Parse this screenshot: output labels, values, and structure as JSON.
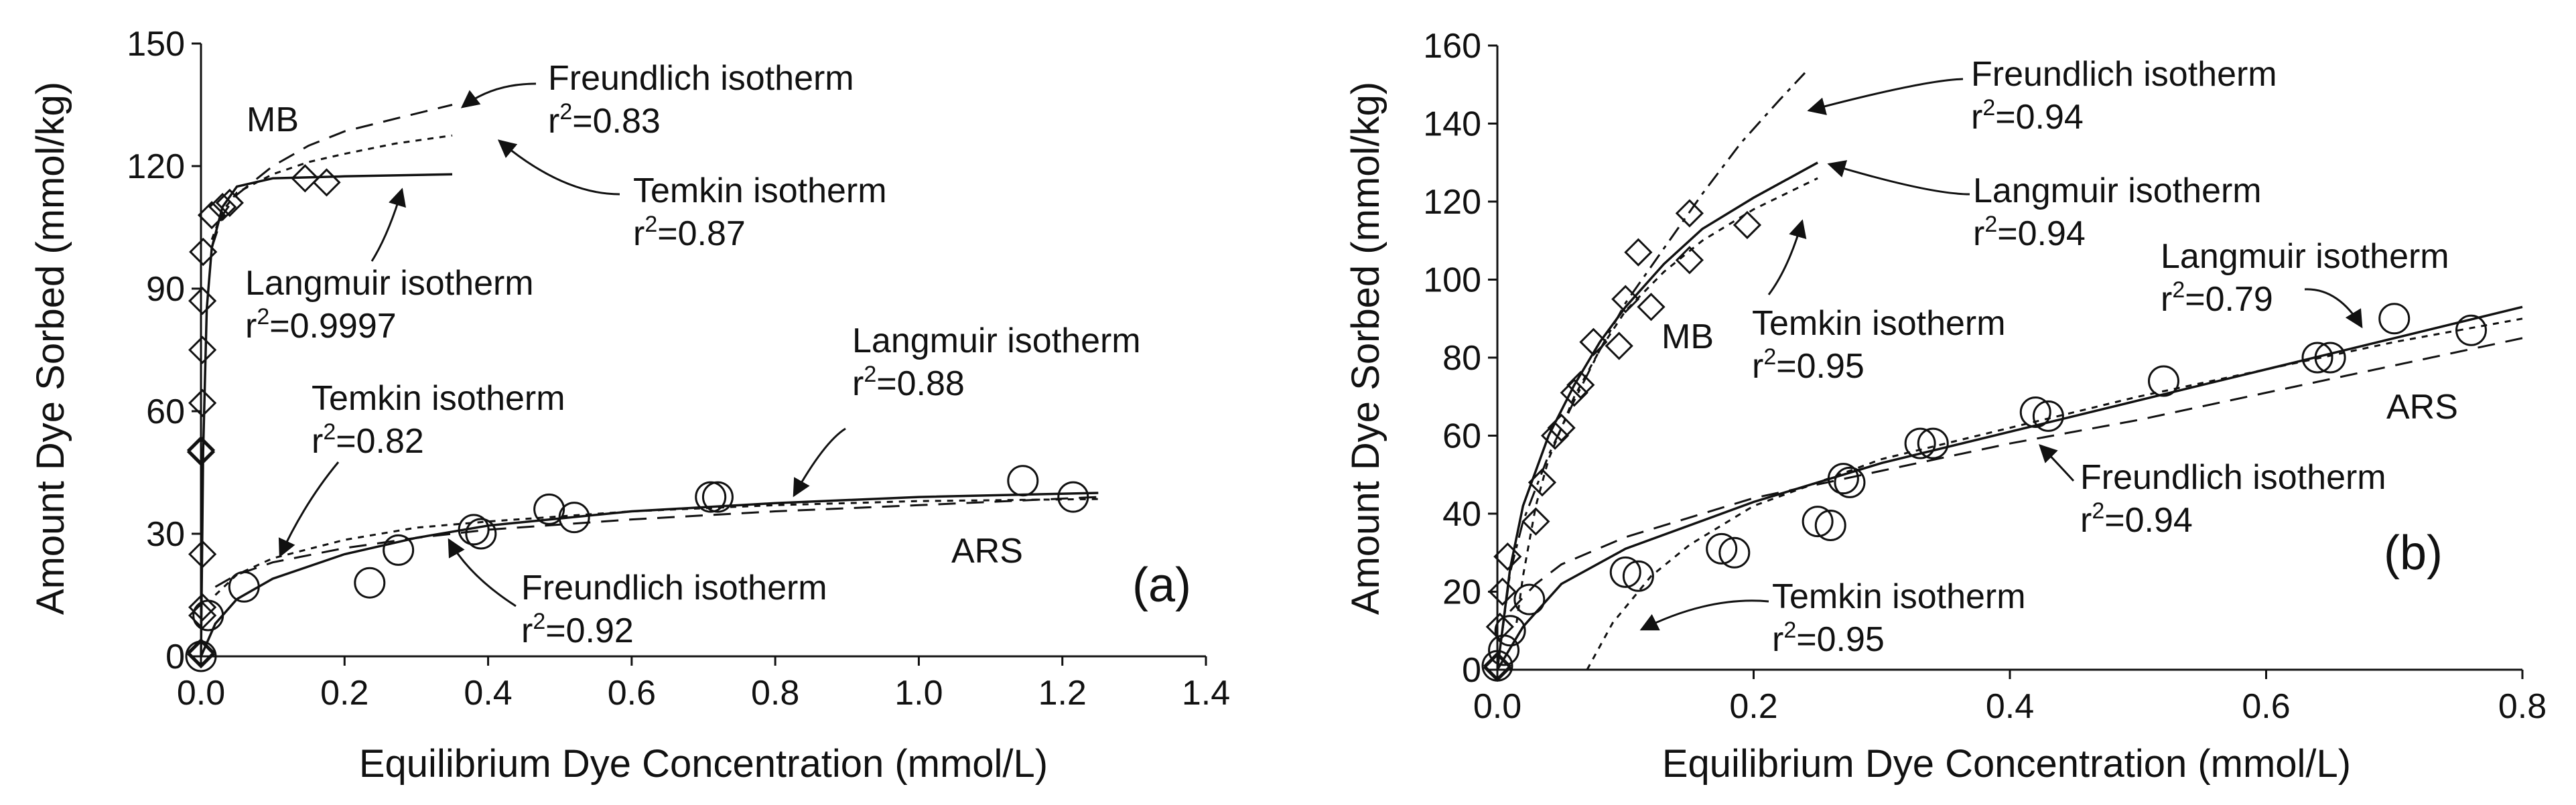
{
  "chart_data": [
    {
      "type": "scatter",
      "panel_label": "(a)",
      "xlabel": "Equilibrium Dye Concentration (mmol/L)",
      "ylabel": "Amount Dye Sorbed (mmol/kg)",
      "xlim": [
        0,
        1.4
      ],
      "ylim": [
        0,
        150
      ],
      "xticks": [
        0,
        0.2,
        0.4,
        0.6,
        0.8,
        1.0,
        1.2,
        1.4
      ],
      "xtick_labels": [
        "0.0",
        "0.2",
        "0.4",
        "0.6",
        "0.8",
        "1.0",
        "1.2",
        "1.4"
      ],
      "yticks": [
        0,
        30,
        60,
        90,
        120,
        150
      ],
      "ytick_labels": [
        "0",
        "30",
        "60",
        "90",
        "120",
        "150"
      ],
      "series": [
        {
          "name": "MB",
          "marker": "diamond",
          "points": [
            [
              0.0,
              0.5
            ],
            [
              0.0,
              1.0
            ],
            [
              0.002,
              10
            ],
            [
              0.002,
              12
            ],
            [
              0.002,
              25
            ],
            [
              0.0,
              50
            ],
            [
              0.0,
              50.5
            ],
            [
              0.002,
              62
            ],
            [
              0.002,
              75
            ],
            [
              0.002,
              87
            ],
            [
              0.003,
              99
            ],
            [
              0.015,
              108
            ],
            [
              0.03,
              110
            ],
            [
              0.04,
              111
            ],
            [
              0.145,
              117
            ],
            [
              0.175,
              116
            ]
          ]
        },
        {
          "name": "ARS",
          "marker": "circle",
          "points": [
            [
              0.0,
              0
            ],
            [
              0.01,
              10
            ],
            [
              0.06,
              17
            ],
            [
              0.235,
              18
            ],
            [
              0.275,
              26
            ],
            [
              0.38,
              31
            ],
            [
              0.39,
              30
            ],
            [
              0.485,
              36
            ],
            [
              0.52,
              34
            ],
            [
              0.71,
              39
            ],
            [
              0.72,
              39
            ],
            [
              1.145,
              43
            ],
            [
              1.215,
              39
            ]
          ]
        }
      ],
      "fit_lines": [
        {
          "name": "MB Langmuir",
          "style": "solid",
          "points": [
            [
              0,
              0
            ],
            [
              0.003,
              50
            ],
            [
              0.008,
              85
            ],
            [
              0.015,
              100
            ],
            [
              0.03,
              110
            ],
            [
              0.05,
              115
            ],
            [
              0.1,
              117
            ],
            [
              0.2,
              117.5
            ],
            [
              0.35,
              118
            ]
          ]
        },
        {
          "name": "MB Freundlich",
          "style": "dash",
          "points": [
            [
              0.015,
              100
            ],
            [
              0.03,
              108
            ],
            [
              0.05,
              113
            ],
            [
              0.1,
              120
            ],
            [
              0.15,
              125
            ],
            [
              0.2,
              128.5
            ],
            [
              0.28,
              132
            ],
            [
              0.35,
              135
            ]
          ]
        },
        {
          "name": "MB Temkin",
          "style": "dot",
          "points": [
            [
              0.015,
              102
            ],
            [
              0.03,
              109
            ],
            [
              0.05,
              113.5
            ],
            [
              0.1,
              118
            ],
            [
              0.15,
              121
            ],
            [
              0.2,
              123
            ],
            [
              0.27,
              125.5
            ],
            [
              0.35,
              127.5
            ]
          ]
        },
        {
          "name": "ARS Langmuir",
          "style": "solid",
          "points": [
            [
              0,
              0
            ],
            [
              0.02,
              8
            ],
            [
              0.05,
              14
            ],
            [
              0.1,
              19
            ],
            [
              0.2,
              25
            ],
            [
              0.3,
              29
            ],
            [
              0.4,
              32
            ],
            [
              0.6,
              35.5
            ],
            [
              0.8,
              37.5
            ],
            [
              1.0,
              39
            ],
            [
              1.25,
              40
            ]
          ]
        },
        {
          "name": "ARS Freundlich",
          "style": "dash",
          "points": [
            [
              0.02,
              17
            ],
            [
              0.05,
              20
            ],
            [
              0.1,
              23
            ],
            [
              0.2,
              26.5
            ],
            [
              0.3,
              29
            ],
            [
              0.4,
              31
            ],
            [
              0.6,
              33.5
            ],
            [
              0.8,
              35.5
            ],
            [
              1.0,
              37
            ],
            [
              1.25,
              39
            ]
          ]
        },
        {
          "name": "ARS Temkin",
          "style": "dot",
          "points": [
            [
              0.02,
              15
            ],
            [
              0.05,
              20
            ],
            [
              0.1,
              24
            ],
            [
              0.2,
              28.5
            ],
            [
              0.3,
              31.5
            ],
            [
              0.4,
              33
            ],
            [
              0.6,
              35.5
            ],
            [
              0.8,
              37
            ],
            [
              1.0,
              38
            ],
            [
              1.25,
              38.5
            ]
          ]
        }
      ],
      "annotations": [
        {
          "id": "mb",
          "lines": [
            "MB"
          ]
        },
        {
          "id": "mb-freundlich",
          "lines": [
            "Freundlich isotherm",
            "r²=0.83"
          ]
        },
        {
          "id": "mb-temkin",
          "lines": [
            "Temkin isotherm",
            "r²=0.87"
          ]
        },
        {
          "id": "mb-langmuir",
          "lines": [
            "Langmuir isotherm",
            "r²=0.9997"
          ]
        },
        {
          "id": "ars-langmuir",
          "lines": [
            "Langmuir isotherm",
            "r²=0.88"
          ]
        },
        {
          "id": "ars-temkin",
          "lines": [
            "Temkin isotherm",
            "r²=0.82"
          ]
        },
        {
          "id": "ars-freundlich",
          "lines": [
            "Freundlich isotherm",
            "r²=0.92"
          ]
        },
        {
          "id": "ars",
          "lines": [
            "ARS"
          ]
        }
      ]
    },
    {
      "type": "scatter",
      "panel_label": "(b)",
      "xlabel": "Equilibrium Dye Concentration (mmol/L)",
      "ylabel": "Amount Dye Sorbed (mmol/kg)",
      "xlim": [
        0,
        0.8
      ],
      "ylim": [
        0,
        160
      ],
      "xticks": [
        0,
        0.2,
        0.4,
        0.6,
        0.8
      ],
      "xtick_labels": [
        "0.0",
        "0.2",
        "0.4",
        "0.6",
        "0.8"
      ],
      "yticks": [
        0,
        20,
        40,
        60,
        80,
        100,
        120,
        140,
        160
      ],
      "ytick_labels": [
        "0",
        "20",
        "40",
        "60",
        "80",
        "100",
        "120",
        "140",
        "160"
      ],
      "series": [
        {
          "name": "MB",
          "marker": "diamond",
          "points": [
            [
              0.0,
              1
            ],
            [
              0.0,
              0.5
            ],
            [
              0.002,
              11
            ],
            [
              0.004,
              20
            ],
            [
              0.008,
              29
            ],
            [
              0.03,
              38
            ],
            [
              0.035,
              48
            ],
            [
              0.045,
              60
            ],
            [
              0.05,
              62
            ],
            [
              0.06,
              71
            ],
            [
              0.065,
              73
            ],
            [
              0.075,
              84
            ],
            [
              0.095,
              83
            ],
            [
              0.1,
              95
            ],
            [
              0.11,
              107
            ],
            [
              0.12,
              93
            ],
            [
              0.15,
              105
            ],
            [
              0.15,
              117
            ],
            [
              0.195,
              114
            ]
          ]
        },
        {
          "name": "ARS",
          "marker": "circle",
          "points": [
            [
              0.0,
              1
            ],
            [
              0.005,
              5
            ],
            [
              0.01,
              10
            ],
            [
              0.025,
              18
            ],
            [
              0.1,
              25
            ],
            [
              0.11,
              24
            ],
            [
              0.175,
              31
            ],
            [
              0.185,
              30
            ],
            [
              0.25,
              38
            ],
            [
              0.26,
              37
            ],
            [
              0.27,
              49
            ],
            [
              0.275,
              48
            ],
            [
              0.33,
              58
            ],
            [
              0.34,
              58
            ],
            [
              0.42,
              66
            ],
            [
              0.43,
              65
            ],
            [
              0.52,
              74
            ],
            [
              0.64,
              80
            ],
            [
              0.65,
              80
            ],
            [
              0.7,
              90
            ],
            [
              0.76,
              87
            ]
          ]
        }
      ],
      "fit_lines": [
        {
          "name": "MB Freundlich",
          "style": "dashdot",
          "points": [
            [
              0.0,
              0
            ],
            [
              0.01,
              25
            ],
            [
              0.02,
              38
            ],
            [
              0.04,
              55
            ],
            [
              0.06,
              69
            ],
            [
              0.08,
              82
            ],
            [
              0.1,
              94
            ],
            [
              0.13,
              108
            ],
            [
              0.16,
              122
            ],
            [
              0.19,
              135
            ],
            [
              0.22,
              146
            ],
            [
              0.24,
              153
            ]
          ]
        },
        {
          "name": "MB Langmuir",
          "style": "solid",
          "points": [
            [
              0.0,
              0
            ],
            [
              0.01,
              26
            ],
            [
              0.02,
              42
            ],
            [
              0.04,
              60
            ],
            [
              0.06,
              73
            ],
            [
              0.08,
              84
            ],
            [
              0.1,
              93
            ],
            [
              0.13,
              104
            ],
            [
              0.16,
              113
            ],
            [
              0.2,
              121
            ],
            [
              0.25,
              130
            ]
          ]
        },
        {
          "name": "MB Temkin",
          "style": "dot",
          "points": [
            [
              0.015,
              12
            ],
            [
              0.02,
              24
            ],
            [
              0.03,
              42
            ],
            [
              0.04,
              54
            ],
            [
              0.06,
              70
            ],
            [
              0.08,
              82
            ],
            [
              0.1,
              92
            ],
            [
              0.13,
              102
            ],
            [
              0.16,
              110
            ],
            [
              0.2,
              118
            ],
            [
              0.25,
              126
            ]
          ]
        },
        {
          "name": "ARS Langmuir",
          "style": "solid",
          "points": [
            [
              0.0,
              0
            ],
            [
              0.02,
              11
            ],
            [
              0.05,
              22
            ],
            [
              0.1,
              31
            ],
            [
              0.2,
              43
            ],
            [
              0.3,
              53
            ],
            [
              0.4,
              61
            ],
            [
              0.5,
              69
            ],
            [
              0.6,
              77
            ],
            [
              0.7,
              85
            ],
            [
              0.8,
              93
            ]
          ]
        },
        {
          "name": "ARS Freundlich",
          "style": "dash",
          "points": [
            [
              0.01,
              15
            ],
            [
              0.03,
              22
            ],
            [
              0.05,
              27
            ],
            [
              0.1,
              34
            ],
            [
              0.2,
              44
            ],
            [
              0.3,
              51
            ],
            [
              0.4,
              58
            ],
            [
              0.5,
              64
            ],
            [
              0.6,
              71
            ],
            [
              0.7,
              78
            ],
            [
              0.8,
              85
            ]
          ]
        },
        {
          "name": "ARS Temkin",
          "style": "dot",
          "points": [
            [
              0.07,
              0
            ],
            [
              0.09,
              12
            ],
            [
              0.12,
              24
            ],
            [
              0.15,
              32
            ],
            [
              0.2,
              42
            ],
            [
              0.3,
              54
            ],
            [
              0.4,
              62
            ],
            [
              0.5,
              70
            ],
            [
              0.6,
              77
            ],
            [
              0.7,
              84
            ],
            [
              0.8,
              90
            ]
          ]
        }
      ],
      "annotations": [
        {
          "id": "mb-freundlich",
          "lines": [
            "Freundlich isotherm",
            "r²=0.94"
          ]
        },
        {
          "id": "mb-langmuir",
          "lines": [
            "Langmuir isotherm",
            "r²=0.94"
          ]
        },
        {
          "id": "mb-temkin",
          "lines": [
            "Temkin isotherm",
            "r²=0.95"
          ]
        },
        {
          "id": "mb",
          "lines": [
            "MB"
          ]
        },
        {
          "id": "ars-langmuir",
          "lines": [
            "Langmuir isotherm",
            "r²=0.79"
          ]
        },
        {
          "id": "ars",
          "lines": [
            "ARS"
          ]
        },
        {
          "id": "ars-freundlich",
          "lines": [
            "Freundlich isotherm",
            "r²=0.94"
          ]
        },
        {
          "id": "ars-temkin",
          "lines": [
            "Temkin isotherm",
            "r²=0.95"
          ]
        }
      ]
    }
  ]
}
